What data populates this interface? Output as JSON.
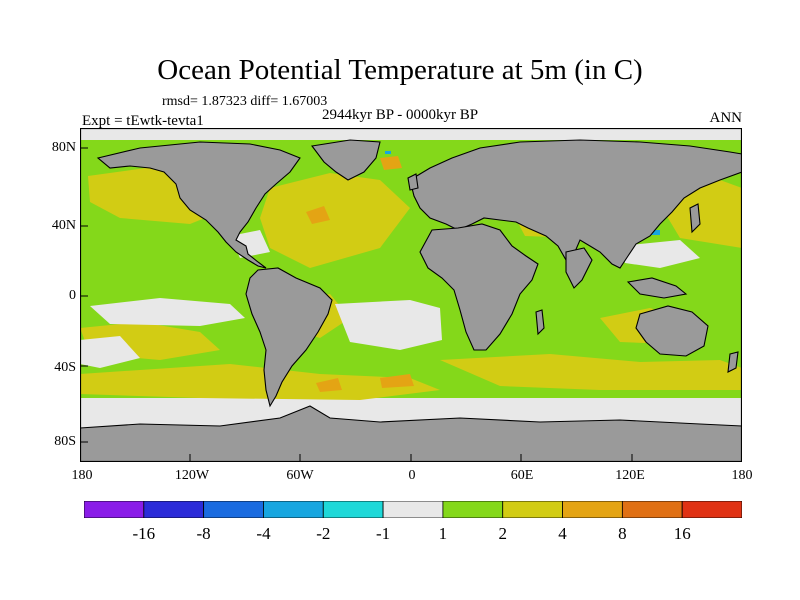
{
  "title": "Ocean Potential Temperature at 5m (in C)",
  "stats": {
    "rmsd_label": "rmsd= 1.87323 diff= 1.67003"
  },
  "period": "2944kyr BP - 0000kyr BP",
  "experiment": "Expt = tEwtk-tevta1",
  "season": "ANN",
  "map": {
    "projection": "cylindrical-equidistant",
    "land_color": "#9a9a9a",
    "y_ticks": [
      "80N",
      "40N",
      "0",
      "40S",
      "80S"
    ],
    "x_ticks": [
      "180",
      "120W",
      "60W",
      "0",
      "60E",
      "120E",
      "180"
    ]
  },
  "colorbar": {
    "colors": [
      "#8a1ce8",
      "#2b2bd8",
      "#1a6be0",
      "#17a6e0",
      "#1ed8d8",
      "#e8e8e8",
      "#84d81a",
      "#d2cc14",
      "#e4a414",
      "#e07014",
      "#e03214"
    ],
    "labels": [
      "-16",
      "-8",
      "-4",
      "-2",
      "-1",
      "1",
      "2",
      "4",
      "8",
      "16"
    ]
  }
}
